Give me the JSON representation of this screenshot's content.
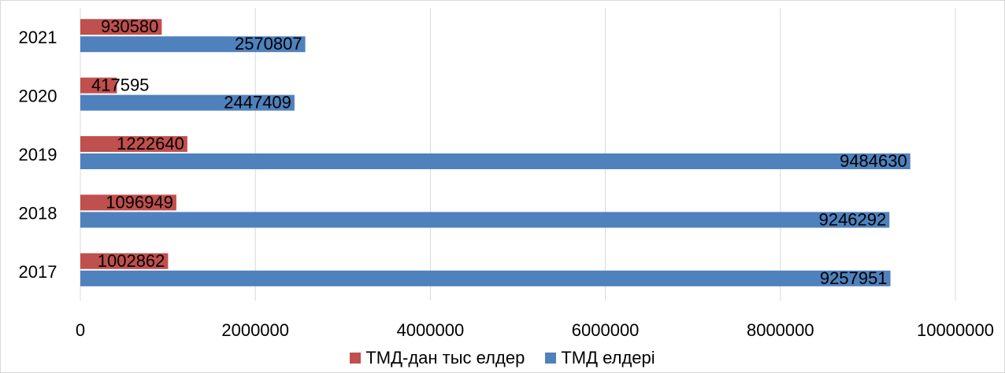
{
  "chart_data": {
    "type": "bar",
    "orientation": "horizontal",
    "categories": [
      "2017",
      "2018",
      "2019",
      "2020",
      "2021"
    ],
    "series": [
      {
        "name": "ТМД-дан тыс елдер",
        "color": "#c0504d",
        "values": [
          1002862,
          1096949,
          1222640,
          417595,
          930580
        ]
      },
      {
        "name": "ТМД елдері",
        "color": "#4f81bd",
        "values": [
          9257951,
          9246292,
          9484630,
          2447409,
          2570807
        ]
      }
    ],
    "xlim": [
      0,
      10000000
    ],
    "xticks": [
      "0",
      "2000000",
      "4000000",
      "6000000",
      "8000000",
      "10000000"
    ],
    "grid": "vertical",
    "legend": "bottom-center",
    "data_labels": true
  }
}
